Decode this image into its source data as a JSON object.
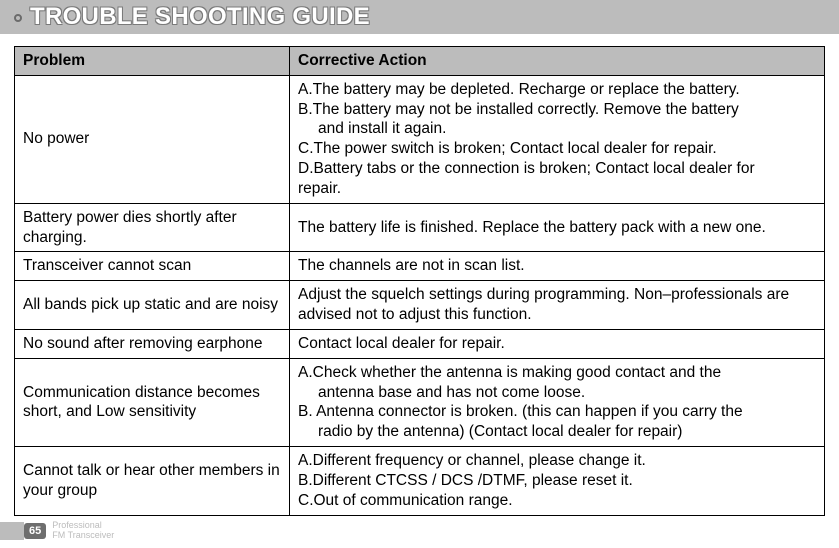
{
  "title": "TROUBLE SHOOTING GUIDE",
  "headers": {
    "problem": "Problem",
    "action": "Corrective Action"
  },
  "rows": [
    {
      "problem": "No power",
      "action_lines": [
        "A.The battery may be depleted. Recharge or replace the   battery.",
        "B.The battery may not be installed correctly. Remove the battery",
        "INDENT:and install it again.",
        "C.The power switch is broken; Contact local dealer for repair.",
        "JUSTIFY:D.Battery tabs or the connection is broken; Contact local dealer for",
        "repair."
      ]
    },
    {
      "problem": "Battery power dies shortly after charging.",
      "action": "The battery life is finished. Replace the battery pack with a new one."
    },
    {
      "problem": "Transceiver cannot scan",
      "action": "The channels are not in scan list."
    },
    {
      "problem": "All bands pick up static and are noisy",
      "action": "Adjust the squelch settings during programming. Non–professionals are advised not to adjust this function."
    },
    {
      "problem": "No sound after removing earphone",
      "action": "Contact local dealer for repair."
    },
    {
      "problem": "Communication distance becomes short, and Low sensitivity",
      "action_lines": [
        "A.Check whether the antenna is making good contact and the",
        "INDENT:antenna base and has not come loose.",
        "B. Antenna connector is broken. (this can happen if you carry the",
        "INDENT:radio by the antenna) (Contact local dealer for repair)"
      ]
    },
    {
      "problem": "Cannot talk or hear other members in your group",
      "action_lines": [
        "A.Different frequency or channel, please change it.",
        "B.Different CTCSS / DCS /DTMF, please reset it.",
        "C.Out of communication range."
      ]
    }
  ],
  "footer": {
    "page": "65",
    "line1": "Professional",
    "line2": "FM Transceiver"
  }
}
